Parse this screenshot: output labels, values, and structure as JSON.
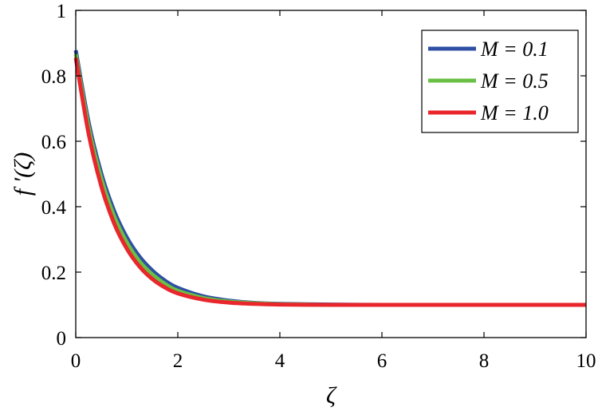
{
  "chart_data": {
    "type": "line",
    "title": "",
    "xlabel": "ζ",
    "ylabel": "f ′(ζ)",
    "xlim": [
      0,
      10
    ],
    "ylim": [
      0,
      1
    ],
    "x_ticks": [
      "0",
      "2",
      "4",
      "6",
      "8",
      "10"
    ],
    "y_ticks": [
      "0",
      "0.2",
      "0.4",
      "0.6",
      "0.8",
      "1"
    ],
    "grid": false,
    "legend_position": "top-right",
    "x": [
      0,
      0.25,
      0.5,
      0.75,
      1.0,
      1.25,
      1.5,
      1.75,
      2.0,
      2.5,
      3.0,
      3.5,
      4.0,
      5.0,
      6.0,
      7.0,
      8.0,
      9.0,
      10.0
    ],
    "series": [
      {
        "name": "M = 0.1",
        "color": "#2e4fa3",
        "values": [
          0.878,
          0.66,
          0.502,
          0.388,
          0.306,
          0.247,
          0.205,
          0.174,
          0.152,
          0.126,
          0.113,
          0.106,
          0.103,
          0.101,
          0.1,
          0.1,
          0.1,
          0.1,
          0.1
        ]
      },
      {
        "name": "M = 0.5",
        "color": "#6abf45",
        "values": [
          0.866,
          0.645,
          0.486,
          0.372,
          0.291,
          0.233,
          0.193,
          0.164,
          0.143,
          0.121,
          0.11,
          0.105,
          0.102,
          0.1,
          0.1,
          0.1,
          0.1,
          0.1,
          0.1
        ]
      },
      {
        "name": "M = 1.0",
        "color": "#e8262b",
        "values": [
          0.855,
          0.625,
          0.463,
          0.35,
          0.272,
          0.217,
          0.179,
          0.153,
          0.135,
          0.116,
          0.107,
          0.103,
          0.101,
          0.1,
          0.1,
          0.1,
          0.1,
          0.1,
          0.1
        ]
      }
    ]
  }
}
